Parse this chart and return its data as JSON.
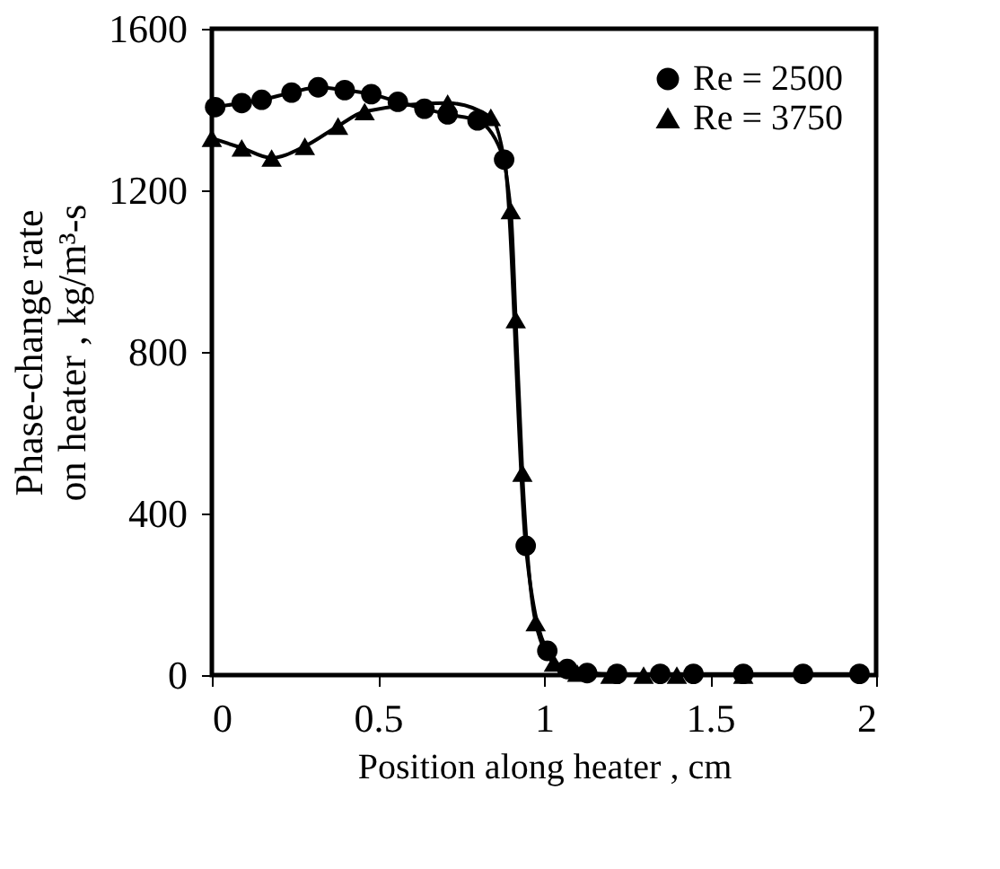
{
  "chart_data": {
    "type": "line",
    "xlabel": "Position along heater , cm",
    "ylabel": "Phase-change rate\non heater , kg/m³-s",
    "xlim": [
      0,
      2
    ],
    "xticks": [
      0,
      0.5,
      1,
      1.5,
      2
    ],
    "ylim": [
      0,
      1600
    ],
    "yticks": [
      0,
      400,
      800,
      1200,
      1600
    ],
    "grid": false,
    "legend": "top right",
    "line_style": "solid",
    "series": [
      {
        "name": "Re = 2500",
        "color": "#000000",
        "marker": "circle",
        "x": [
          0.01,
          0.09,
          0.15,
          0.24,
          0.32,
          0.4,
          0.48,
          0.56,
          0.64,
          0.71,
          0.8,
          0.88,
          0.945,
          1.01,
          1.07,
          1.13,
          1.22,
          1.35,
          1.45,
          1.6,
          1.78,
          1.95
        ],
        "values": [
          1406,
          1416,
          1424,
          1442,
          1455,
          1448,
          1438,
          1419,
          1402,
          1388,
          1373,
          1276,
          320,
          60,
          15,
          5,
          3,
          3,
          3,
          3,
          3,
          3
        ]
      },
      {
        "name": "Re = 3750",
        "color": "#000000",
        "marker": "triangle",
        "x": [
          0,
          0.09,
          0.18,
          0.28,
          0.38,
          0.46,
          0.71,
          0.84,
          0.9,
          0.915,
          0.935,
          0.975,
          1.03,
          1.1,
          1.2,
          1.3,
          1.4,
          1.6
        ],
        "values": [
          1329,
          1305,
          1280,
          1309,
          1359,
          1395,
          1416,
          1381,
          1150,
          880,
          500,
          130,
          30,
          5,
          0,
          0,
          0,
          0
        ]
      }
    ]
  }
}
